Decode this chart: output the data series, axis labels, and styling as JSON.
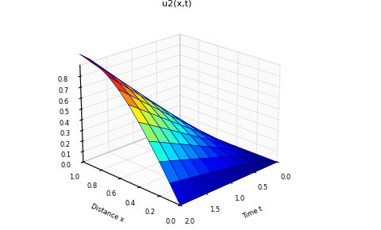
{
  "title": "u2(x,t)",
  "xlabel": "Distance x",
  "ylabel": "Time t",
  "x_range": [
    0,
    1
  ],
  "t_range": [
    0,
    2
  ],
  "x_ticks": [
    0,
    0.2,
    0.4,
    0.6,
    0.8,
    1
  ],
  "t_ticks": [
    0,
    0.5,
    1,
    1.5,
    2
  ],
  "z_ticks": [
    0,
    0.1,
    0.2,
    0.3,
    0.4,
    0.5,
    0.6,
    0.7,
    0.8
  ],
  "nx": 11,
  "nt": 11,
  "background_color": "#ffffff",
  "elev": 22,
  "azim": -135
}
